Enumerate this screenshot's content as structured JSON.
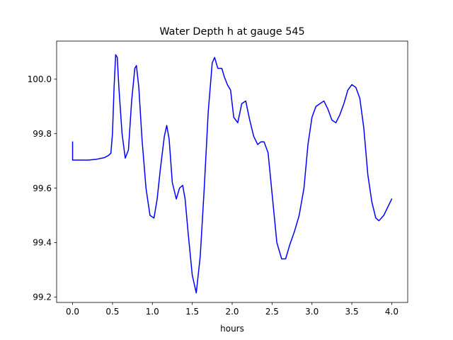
{
  "chart_data": {
    "type": "line",
    "title": "Water Depth h at gauge 545",
    "xlabel": "hours",
    "ylabel": "",
    "xlim": [
      -0.2,
      4.2
    ],
    "ylim": [
      99.18,
      100.14
    ],
    "xticks": [
      0.0,
      0.5,
      1.0,
      1.5,
      2.0,
      2.5,
      3.0,
      3.5,
      4.0
    ],
    "xtick_labels": [
      "0.0",
      "0.5",
      "1.0",
      "1.5",
      "2.0",
      "2.5",
      "3.0",
      "3.5",
      "4.0"
    ],
    "yticks": [
      99.2,
      99.4,
      99.6,
      99.8,
      100.0
    ],
    "ytick_labels": [
      "99.2",
      "99.4",
      "99.6",
      "99.8",
      "100.0"
    ],
    "grid": false,
    "series": [
      {
        "color": "#0000ff",
        "x": [
          0.0,
          0.0,
          0.1,
          0.2,
          0.3,
          0.4,
          0.45,
          0.48,
          0.5,
          0.52,
          0.54,
          0.56,
          0.58,
          0.62,
          0.66,
          0.7,
          0.74,
          0.78,
          0.8,
          0.83,
          0.87,
          0.92,
          0.97,
          1.02,
          1.06,
          1.1,
          1.15,
          1.18,
          1.21,
          1.25,
          1.3,
          1.34,
          1.38,
          1.41,
          1.45,
          1.5,
          1.55,
          1.6,
          1.65,
          1.7,
          1.75,
          1.78,
          1.82,
          1.87,
          1.9,
          1.94,
          1.98,
          2.02,
          2.07,
          2.12,
          2.17,
          2.22,
          2.27,
          2.32,
          2.36,
          2.4,
          2.45,
          2.5,
          2.56,
          2.62,
          2.67,
          2.72,
          2.78,
          2.84,
          2.9,
          2.95,
          3.0,
          3.05,
          3.1,
          3.15,
          3.2,
          3.25,
          3.3,
          3.35,
          3.4,
          3.45,
          3.5,
          3.55,
          3.6,
          3.65,
          3.7,
          3.75,
          3.8,
          3.84,
          3.9,
          3.95,
          4.0
        ],
        "y": [
          99.77,
          99.703,
          99.703,
          99.703,
          99.706,
          99.712,
          99.72,
          99.728,
          99.8,
          99.97,
          100.09,
          100.08,
          99.97,
          99.8,
          99.71,
          99.74,
          99.92,
          100.04,
          100.05,
          99.97,
          99.78,
          99.6,
          99.5,
          99.49,
          99.56,
          99.67,
          99.79,
          99.83,
          99.78,
          99.62,
          99.56,
          99.6,
          99.61,
          99.56,
          99.43,
          99.28,
          99.215,
          99.35,
          99.6,
          99.88,
          100.06,
          100.08,
          100.04,
          100.04,
          100.01,
          99.98,
          99.96,
          99.86,
          99.84,
          99.91,
          99.92,
          99.85,
          99.79,
          99.76,
          99.77,
          99.77,
          99.73,
          99.58,
          99.4,
          99.34,
          99.34,
          99.39,
          99.44,
          99.5,
          99.6,
          99.76,
          99.86,
          99.9,
          99.91,
          99.92,
          99.89,
          99.85,
          99.84,
          99.87,
          99.91,
          99.96,
          99.98,
          99.97,
          99.93,
          99.82,
          99.65,
          99.55,
          99.49,
          99.48,
          99.5,
          99.53,
          99.56
        ]
      }
    ]
  }
}
